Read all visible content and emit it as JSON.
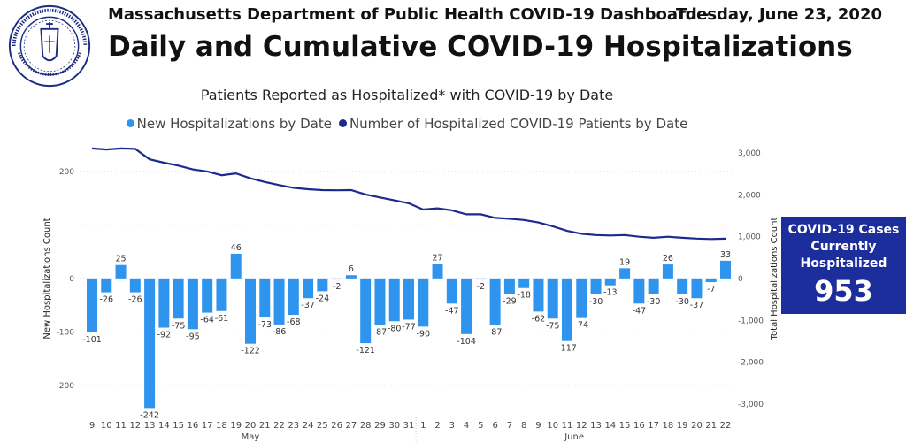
{
  "header": {
    "title_line1": "Massachusetts Department of Public Health COVID-19 Dashboard -",
    "date": "Tuesday, June 23, 2020",
    "title_line2": "Daily and Cumulative COVID-19 Hospitalizations",
    "seal_text": "COMMONWEALTH OF MASSACHUSETTS · DEPARTMENT OF PUBLIC HEALTH"
  },
  "card": {
    "title": "COVID-19 Cases Currently Hospitalized",
    "value": "953",
    "color": "#1c2d9c"
  },
  "chart_data": {
    "type": "bar+line",
    "title": "Patients Reported as Hospitalized* with COVID-19 by Date",
    "ylabel_left": "New Hospitalizations Count",
    "ylabel_right": "Total Hospitalizations Count",
    "legend_position": "top",
    "grid": true,
    "months": [
      {
        "label": "May",
        "from": 0,
        "to": 22
      },
      {
        "label": "June",
        "from": 23,
        "to": 44
      }
    ],
    "categories": [
      "9",
      "10",
      "11",
      "12",
      "13",
      "14",
      "15",
      "16",
      "17",
      "18",
      "19",
      "20",
      "21",
      "22",
      "23",
      "24",
      "25",
      "26",
      "27",
      "28",
      "29",
      "30",
      "31",
      "1",
      "2",
      "3",
      "4",
      "5",
      "6",
      "7",
      "8",
      "9",
      "10",
      "11",
      "12",
      "13",
      "14",
      "15",
      "16",
      "17",
      "18",
      "19",
      "20",
      "21",
      "22"
    ],
    "left_ticks": [
      200,
      0,
      -100,
      -200
    ],
    "left_ticks_labels": [
      "200",
      "0",
      "-100",
      "-200"
    ],
    "right_ticks": [
      3000,
      2000,
      1000,
      0,
      -1000,
      -2000,
      -3000
    ],
    "right_ticks_labels": [
      "3,000",
      "2,000",
      "1,000",
      "0",
      "-1,000",
      "-2,000",
      "-3,000"
    ],
    "ylim_left": [
      -248,
      264
    ],
    "ylim_right": [
      -3171,
      3383
    ],
    "series": [
      {
        "name": "New Hospitalizations by Date",
        "type": "bar",
        "axis": "left",
        "color": "#2f94ee",
        "values": [
          -101,
          -26,
          25,
          -26,
          -242,
          -92,
          -75,
          -95,
          -64,
          -61,
          46,
          -122,
          -73,
          -86,
          -68,
          -37,
          -24,
          -2,
          6,
          -121,
          -87,
          -80,
          -77,
          -90,
          27,
          -47,
          -104,
          -2,
          -87,
          -29,
          -18,
          -62,
          -75,
          -117,
          -74,
          -30,
          -13,
          19,
          -47,
          -30,
          26,
          -30,
          -37,
          -7,
          33
        ]
      },
      {
        "name": "Number of Hospitalized COVID-19 Patients by Date",
        "type": "line",
        "axis": "right",
        "color": "#1b2a8f",
        "values": [
          3110,
          3085,
          3110,
          3100,
          2850,
          2770,
          2700,
          2610,
          2560,
          2470,
          2515,
          2395,
          2310,
          2235,
          2170,
          2135,
          2115,
          2110,
          2115,
          2010,
          1940,
          1870,
          1800,
          1650,
          1680,
          1630,
          1535,
          1535,
          1450,
          1430,
          1400,
          1340,
          1250,
          1140,
          1070,
          1040,
          1030,
          1040,
          1000,
          975,
          1000,
          975,
          955,
          945,
          953
        ]
      }
    ]
  }
}
